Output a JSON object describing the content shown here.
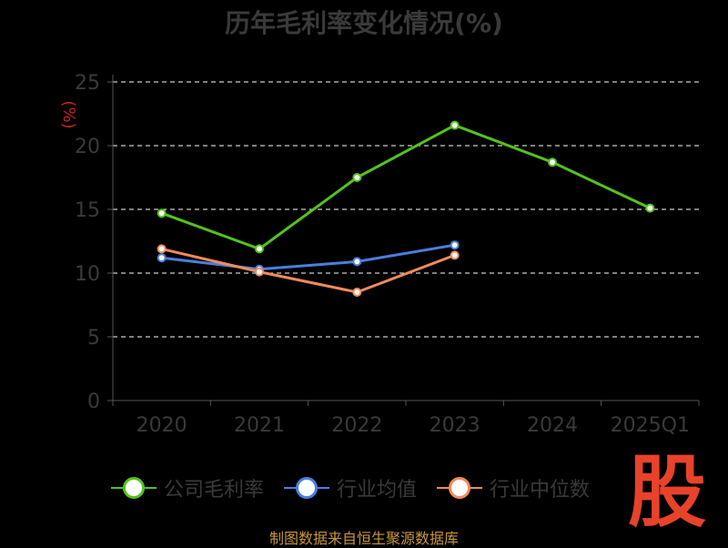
{
  "title": "历年毛利率变化情况(%)",
  "source": "制图数据来自恒生聚源数据库",
  "watermark": "股",
  "chart_data": {
    "type": "line",
    "title": "历年毛利率变化情况(%)",
    "ylabel": "(%)",
    "xlabel": "",
    "categories": [
      "2020",
      "2021",
      "2022",
      "2023",
      "2024",
      "2025Q1"
    ],
    "ylim": [
      0,
      25
    ],
    "yticks": [
      0,
      5,
      10,
      15,
      20,
      25
    ],
    "grid": true,
    "legend_position": "bottom",
    "series": [
      {
        "name": "公司毛利率",
        "color": "#52c41a",
        "values": [
          14.7,
          11.9,
          17.5,
          21.6,
          18.7,
          15.1
        ]
      },
      {
        "name": "行业均值",
        "color": "#4a7fe0",
        "values": [
          11.2,
          10.3,
          10.9,
          12.2,
          null,
          null
        ]
      },
      {
        "name": "行业中位数",
        "color": "#f28b5b",
        "values": [
          11.9,
          10.1,
          8.5,
          11.4,
          null,
          null
        ]
      }
    ]
  }
}
